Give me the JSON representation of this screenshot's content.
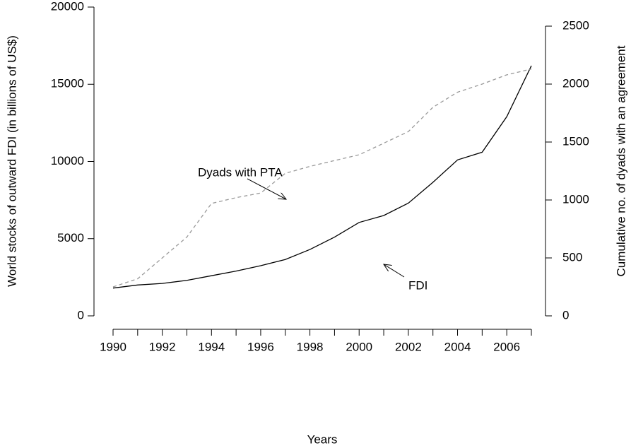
{
  "chart_data": {
    "type": "line",
    "x_label": "Years",
    "y_label": "World stocks of outward FDI (in billions of US$)",
    "y2_label": "Cumulative no. of dyads with an agreement",
    "x": [
      1990,
      1991,
      1992,
      1993,
      1994,
      1995,
      1996,
      1997,
      1998,
      1999,
      2000,
      2001,
      2002,
      2003,
      2004,
      2005,
      2006,
      2007
    ],
    "xlim": [
      1990,
      2007
    ],
    "xticks": [
      1990,
      1992,
      1994,
      1996,
      1998,
      2000,
      2002,
      2004,
      2006
    ],
    "ylim": [
      0,
      20000
    ],
    "yticks": [
      0,
      5000,
      10000,
      15000,
      20000
    ],
    "y2lim": [
      0,
      2500
    ],
    "y2ticks": [
      0,
      500,
      1000,
      1500,
      2000,
      2500
    ],
    "series": [
      {
        "name": "FDI",
        "color": "#000000",
        "dash": false,
        "values": [
          1800,
          2000,
          2100,
          2300,
          2600,
          2900,
          3250,
          3650,
          4300,
          5100,
          6050,
          6500,
          7300,
          8650,
          10100,
          10600,
          12900,
          16200
        ]
      },
      {
        "name": "Dyads with PTA",
        "color": "#999999",
        "dash": true,
        "axis": "y2",
        "values": [
          250,
          320,
          500,
          680,
          970,
          1020,
          1060,
          1230,
          1290,
          1340,
          1390,
          1490,
          1590,
          1800,
          1930,
          2000,
          2080,
          2130
        ]
      }
    ]
  }
}
